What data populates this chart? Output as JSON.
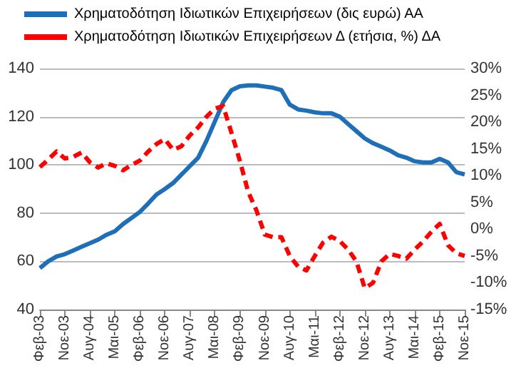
{
  "chart_data": {
    "type": "line",
    "categories": [
      "Φεβ-03",
      null,
      null,
      "Νοε-03",
      null,
      null,
      "Αυγ-04",
      null,
      null,
      "Μαι-05",
      null,
      null,
      "Φεβ-06",
      null,
      null,
      "Νοε-06",
      null,
      null,
      "Αυγ-07",
      null,
      null,
      "Μαι-08",
      null,
      null,
      "Φεβ-09",
      null,
      null,
      "Νοε-09",
      null,
      null,
      "Αυγ-10",
      null,
      null,
      "Μαι-11",
      null,
      null,
      "Φεβ-12",
      null,
      null,
      "Νοε-12",
      null,
      null,
      "Αυγ-13",
      null,
      null,
      "Μαι-14",
      null,
      null,
      "Φεβ-15",
      null,
      null,
      "Νοε-15"
    ],
    "series": [
      {
        "name": "Χρηματοδότηση Ιδιωτικών Επιχειρήσεων (δις ευρώ) ΑΑ",
        "color": "#1f6fb8",
        "line_style": "solid",
        "values": [
          57.2,
          60,
          62,
          63,
          64.5,
          66,
          67.5,
          69,
          71,
          72.5,
          75.5,
          78,
          80.5,
          84,
          87.7,
          90,
          92.5,
          96,
          99.5,
          103,
          110,
          118,
          126,
          131,
          132.6,
          133,
          133,
          132.5,
          132,
          131,
          125,
          123,
          122.5,
          121.8,
          121.4,
          121.4,
          120,
          117,
          114,
          111,
          109,
          107.5,
          106,
          104,
          103,
          101.5,
          101,
          101,
          102.5,
          101,
          97,
          96
        ]
      },
      {
        "name": "Χρηματοδότηση Ιδιωτικών Επιχειρήσεων Δ (ετήσια, %) ΔΑ",
        "color": "#ff0000",
        "line_style": "dashed",
        "axis": "y2",
        "values": [
          11.6,
          13,
          14.5,
          13.2,
          13.5,
          14.3,
          12.5,
          11.5,
          12.3,
          11.8,
          11,
          12,
          12.8,
          14.5,
          15.9,
          16.8,
          14.8,
          15.5,
          17.5,
          19,
          21,
          22.5,
          23,
          18,
          12.8,
          7,
          3.5,
          -1,
          -1.5,
          -1.5,
          -5,
          -7,
          -7.7,
          -5,
          -2.5,
          -1.4,
          -2.2,
          -3.8,
          -6,
          -11,
          -10,
          -6,
          -4.6,
          -5,
          -5.5,
          -3.8,
          -2.3,
          -0.5,
          1,
          -3,
          -4.5,
          -5
        ]
      }
    ],
    "ylim": [
      40,
      140
    ],
    "yticks": [
      40,
      60,
      80,
      100,
      120,
      140
    ],
    "y2lim": [
      -15,
      30
    ],
    "y2ticks": [
      {
        "value": -15,
        "label": "-15%"
      },
      {
        "value": -10,
        "label": "-10%"
      },
      {
        "value": -5,
        "label": "-5%"
      },
      {
        "value": 0,
        "label": "0%"
      },
      {
        "value": 5,
        "label": "5%"
      },
      {
        "value": 10,
        "label": "10%"
      },
      {
        "value": 15,
        "label": "15%"
      },
      {
        "value": 20,
        "label": "20%"
      },
      {
        "value": 25,
        "label": "25%"
      },
      {
        "value": 30,
        "label": "30%"
      }
    ],
    "grid": "y",
    "legend": "top",
    "marker": "none"
  }
}
